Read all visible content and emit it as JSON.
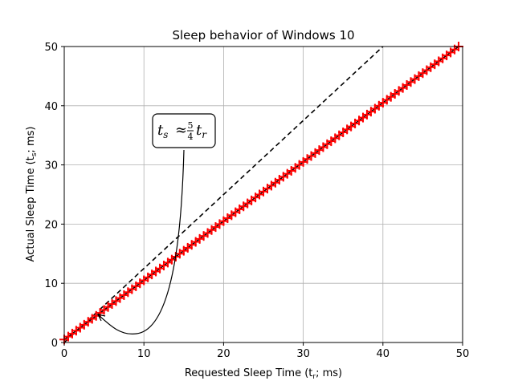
{
  "chart_data": {
    "type": "scatter",
    "title": "Sleep behavior of Windows 10",
    "xlabel": "Requested Sleep Time (t",
    "xlabel_sub": "r",
    "xlabel_end": "; ms)",
    "ylabel": "Actual Sleep Time (t",
    "ylabel_sub": "s",
    "ylabel_end": "; ms)",
    "xlim": [
      0,
      50
    ],
    "ylim": [
      0,
      50
    ],
    "xticks": [
      0,
      10,
      20,
      30,
      40,
      50
    ],
    "yticks": [
      0,
      10,
      20,
      30,
      40,
      50
    ],
    "grid": true,
    "marker_color": "#ff0000",
    "marker": "plus",
    "series": [
      {
        "x": [
          0,
          0.5,
          1,
          1.5,
          2,
          2.5,
          3,
          3.5,
          4,
          4.5,
          5,
          5.5,
          6,
          6.5,
          7,
          7.5,
          8,
          8.5,
          9,
          9.5,
          10,
          10.5,
          11,
          11.5,
          12,
          12.5,
          13,
          13.5,
          14,
          14.5,
          15,
          15.5,
          16,
          16.5,
          17,
          17.5,
          18,
          18.5,
          19,
          19.5,
          20,
          20.5,
          21,
          21.5,
          22,
          22.5,
          23,
          23.5,
          24,
          24.5,
          25,
          25.5,
          26,
          26.5,
          27,
          27.5,
          28,
          28.5,
          29,
          29.5,
          30,
          30.5,
          31,
          31.5,
          32,
          32.5,
          33,
          33.5,
          34,
          34.5,
          35,
          35.5,
          36,
          36.5,
          37,
          37.5,
          38,
          38.5,
          39,
          39.5,
          40,
          40.5,
          41,
          41.5,
          42,
          42.5,
          43,
          43.5,
          44,
          44.5,
          45,
          45.5,
          46,
          46.5,
          47,
          47.5,
          48,
          48.5,
          49,
          49.5,
          50
        ],
        "y": [
          0.5,
          1,
          1.5,
          2,
          2.5,
          3,
          3.5,
          4,
          4.5,
          5,
          5.5,
          6,
          6.5,
          7,
          7.5,
          8,
          8.5,
          9,
          9.5,
          10,
          10.5,
          11,
          11.5,
          12,
          12.5,
          13,
          13.5,
          14,
          14.5,
          15,
          15.5,
          16,
          16.5,
          17,
          17.5,
          18,
          18.5,
          19,
          19.5,
          20,
          20.5,
          21,
          21.5,
          22,
          22.5,
          23,
          23.5,
          24,
          24.5,
          25,
          25.5,
          26,
          26.5,
          27,
          27.5,
          28,
          28.5,
          29,
          29.5,
          30,
          30.5,
          31,
          31.5,
          32,
          32.5,
          33,
          33.5,
          34,
          34.5,
          35,
          35.5,
          36,
          36.5,
          37,
          37.5,
          38,
          38.5,
          39,
          39.5,
          40,
          40.5,
          41,
          41.5,
          42,
          42.5,
          43,
          43.5,
          44,
          44.5,
          45,
          45.5,
          46,
          46.5,
          47,
          47.5,
          48,
          48.5,
          49,
          49.5,
          50,
          50.5
        ]
      }
    ],
    "reference_lines": [
      {
        "style": "solid",
        "color": "#000000",
        "x": [
          0,
          50
        ],
        "y": [
          0.5,
          50.5
        ]
      },
      {
        "style": "dashed",
        "color": "#000000",
        "x": [
          0,
          40
        ],
        "y": [
          0,
          50
        ]
      }
    ],
    "annotation": {
      "lhs": "t",
      "lhs_sub": "s",
      "approx": "≈",
      "frac_num": "5",
      "frac_den": "4",
      "rhs": "t",
      "rhs_sub": "r",
      "arrow_target": [
        4.2,
        4.7
      ]
    }
  }
}
